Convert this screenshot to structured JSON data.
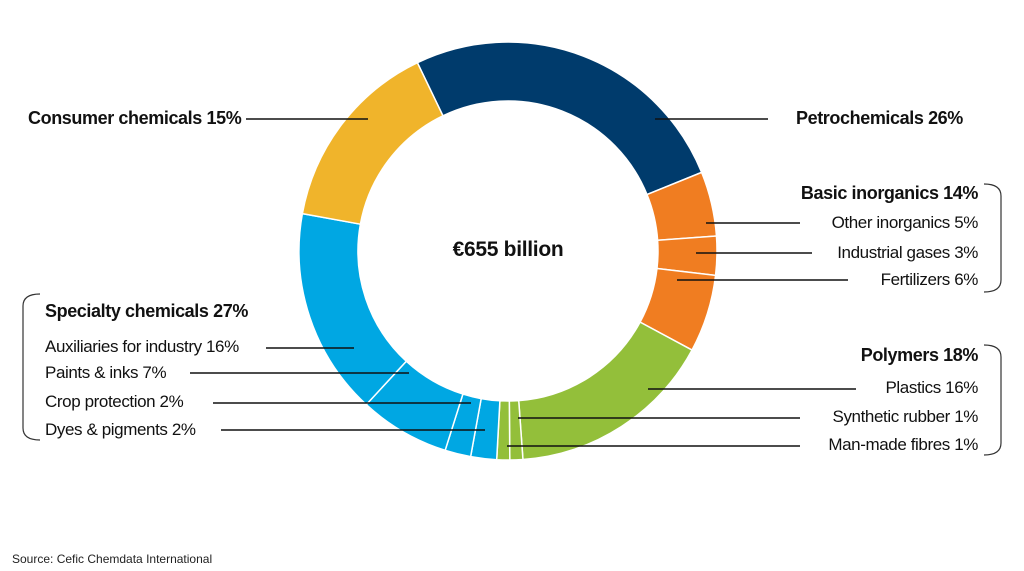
{
  "chart_data": {
    "type": "pie",
    "subtype": "donut",
    "title": "",
    "center_label": "€655 billion",
    "total_value": 655,
    "total_unit": "€ billion",
    "groups": [
      {
        "name": "Petrochemicals",
        "value": 26,
        "color": "#003b6c",
        "children": []
      },
      {
        "name": "Basic inorganics",
        "value": 14,
        "color": "#f07d21",
        "children": [
          {
            "name": "Other inorganics",
            "value": 5
          },
          {
            "name": "Industrial gases",
            "value": 3
          },
          {
            "name": "Fertilizers",
            "value": 6
          }
        ]
      },
      {
        "name": "Polymers",
        "value": 18,
        "color": "#93bf3a",
        "children": [
          {
            "name": "Plastics",
            "value": 16
          },
          {
            "name": "Synthetic rubber",
            "value": 1
          },
          {
            "name": "Man-made fibres",
            "value": 1
          }
        ]
      },
      {
        "name": "Specialty chemicals",
        "value": 27,
        "color": "#00a7e3",
        "children": [
          {
            "name": "Dyes & pigments",
            "value": 2
          },
          {
            "name": "Crop protection",
            "value": 2
          },
          {
            "name": "Paints & inks",
            "value": 7
          },
          {
            "name": "Auxiliaries for industry",
            "value": 16
          }
        ]
      },
      {
        "name": "Consumer chemicals",
        "value": 15,
        "color": "#f0b42b",
        "children": []
      }
    ],
    "slices_clockwise": [
      {
        "label": "Petrochemicals",
        "value": 26,
        "color": "#003b6c"
      },
      {
        "label": "Other inorganics",
        "value": 5,
        "color": "#f07d21"
      },
      {
        "label": "Industrial gases",
        "value": 3,
        "color": "#f07d21"
      },
      {
        "label": "Fertilizers",
        "value": 6,
        "color": "#f07d21"
      },
      {
        "label": "Plastics",
        "value": 16,
        "color": "#93bf3a"
      },
      {
        "label": "Synthetic rubber",
        "value": 1,
        "color": "#93bf3a"
      },
      {
        "label": "Man-made fibres",
        "value": 1,
        "color": "#93bf3a"
      },
      {
        "label": "Dyes & pigments",
        "value": 2,
        "color": "#00a7e3"
      },
      {
        "label": "Crop protection",
        "value": 2,
        "color": "#00a7e3"
      },
      {
        "label": "Paints & inks",
        "value": 7,
        "color": "#00a7e3"
      },
      {
        "label": "Auxiliaries for industry",
        "value": 16,
        "color": "#00a7e3"
      },
      {
        "label": "Consumer chemicals",
        "value": 15,
        "color": "#f0b42b"
      }
    ],
    "start_angle_deg": -25.7,
    "source": "Source: Cefic Chemdata International"
  },
  "labels": {
    "consumer": "Consumer chemicals 15%",
    "petro": "Petrochemicals 26%",
    "basic": "Basic inorganics 14%",
    "other_inorg": "Other inorganics 5%",
    "gases": "Industrial gases 3%",
    "fert": "Fertilizers 6%",
    "polymers": "Polymers 18%",
    "plastics": "Plastics 16%",
    "rubber": "Synthetic rubber 1%",
    "fibres": "Man-made fibres 1%",
    "specialty": "Specialty chemicals 27%",
    "aux": "Auxiliaries for industry 16%",
    "paints": "Paints & inks 7%",
    "crop": "Crop protection 2%",
    "dyes": "Dyes & pigments 2%"
  },
  "center": "€655 billion",
  "source": "Source: Cefic Chemdata International"
}
